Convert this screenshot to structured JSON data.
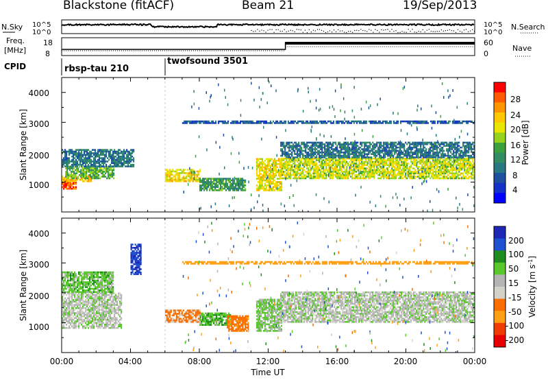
{
  "header": {
    "title": "Blackstone (fitACF)",
    "beam": "Beam 21",
    "date": "19/Sep/2013"
  },
  "top_panels": {
    "nsky_label": "N.Sky",
    "nsky_ticks": [
      "10^5",
      "10^0"
    ],
    "nsearch_label": "N.Search",
    "nsearch_ticks": [
      "10^5",
      "10^0"
    ],
    "freq_label": "Freq.",
    "freq_unit": "[MHz]",
    "freq_ticks": [
      "18",
      "8"
    ],
    "nave_label": "Nave",
    "nave_ticks": [
      "60",
      "0"
    ],
    "cpid_label": "CPID",
    "freq_step_time_ut": 13.0,
    "cpid_segments": [
      {
        "name": "rbsp-tau 210",
        "start_ut": 0.0
      },
      {
        "name": "twofsound 3501",
        "start_ut": 6.0
      }
    ]
  },
  "colorbars": {
    "power": {
      "label": "Power [dB]",
      "ticks": [
        "28",
        "24",
        "20",
        "16",
        "12",
        "8",
        "4"
      ],
      "colors": [
        "#ff0000",
        "#ff5a00",
        "#ff9600",
        "#ffc800",
        "#ebe600",
        "#96d21e",
        "#3ca03c",
        "#328c64",
        "#287882",
        "#1e50a0",
        "#1432c8",
        "#0000ff"
      ]
    },
    "velocity": {
      "label": "Velocity [m s",
      "label_sup": "-1",
      "label_end": "]",
      "ticks": [
        "200",
        "100",
        "50",
        "15",
        "-15",
        "-50",
        "-100",
        "-200"
      ],
      "colors": [
        "#1e28b4",
        "#1e50d2",
        "#1e8c1e",
        "#5ac82d",
        "#b4b4b4",
        "#d2d2c8",
        "#fa6e00",
        "#ffa014",
        "#f03c00",
        "#e60000"
      ]
    }
  },
  "chart_data": [
    {
      "type": "heatmap",
      "title": "Power",
      "xlabel": "Time UT",
      "ylabel": "Slant Range [km]",
      "xlim": [
        "00:00",
        "24:00"
      ],
      "ylim": [
        0,
        4500
      ],
      "x_ticks": [
        "00:00",
        "04:00",
        "08:00",
        "12:00",
        "16:00",
        "20:00",
        "00:00"
      ],
      "y_ticks": [
        "1000",
        "2000",
        "3000",
        "4000"
      ],
      "bands": [
        {
          "t0": 0.0,
          "t1": 0.8,
          "r0": 750,
          "r1": 1050,
          "value_db": 28
        },
        {
          "t0": 0.0,
          "t1": 1.7,
          "r0": 1000,
          "r1": 1200,
          "value_db": 22
        },
        {
          "t0": 0.2,
          "t1": 3.0,
          "r0": 1100,
          "r1": 1500,
          "value_db": 14
        },
        {
          "t0": 0.0,
          "t1": 4.2,
          "r0": 1500,
          "r1": 2100,
          "value_db": 8
        },
        {
          "t0": 6.0,
          "t1": 8.0,
          "r0": 1000,
          "r1": 1400,
          "value_db": 20
        },
        {
          "t0": 8.0,
          "t1": 10.7,
          "r0": 700,
          "r1": 1100,
          "value_db": 12
        },
        {
          "t0": 11.3,
          "t1": 12.8,
          "r0": 700,
          "r1": 1800,
          "value_db": 20
        },
        {
          "t0": 12.7,
          "t1": 24.0,
          "r0": 1100,
          "r1": 1800,
          "value_db": 18
        },
        {
          "t0": 12.7,
          "t1": 24.0,
          "r0": 1800,
          "r1": 2300,
          "value_db": 8
        },
        {
          "t0": 7.0,
          "t1": 24.0,
          "r0": 2950,
          "r1": 3050,
          "value_db": 6
        }
      ]
    },
    {
      "type": "heatmap",
      "title": "Velocity",
      "xlabel": "Time UT",
      "ylabel": "Slant Range [km]",
      "xlim": [
        "00:00",
        "24:00"
      ],
      "ylim": [
        0,
        4500
      ],
      "x_ticks": [
        "00:00",
        "04:00",
        "08:00",
        "12:00",
        "16:00",
        "20:00",
        "00:00"
      ],
      "y_ticks": [
        "1000",
        "2000",
        "3000",
        "4000"
      ],
      "bands": [
        {
          "t0": 0.0,
          "t1": 3.5,
          "r0": 800,
          "r1": 2000,
          "value_ms": 0
        },
        {
          "t0": 0.0,
          "t1": 3.0,
          "r0": 2000,
          "r1": 2700,
          "value_ms": 30
        },
        {
          "t0": 4.0,
          "t1": 4.6,
          "r0": 2600,
          "r1": 3600,
          "value_ms": 200
        },
        {
          "t0": 6.0,
          "t1": 8.0,
          "r0": 1000,
          "r1": 1400,
          "value_ms": -60
        },
        {
          "t0": 8.0,
          "t1": 9.8,
          "r0": 900,
          "r1": 1300,
          "value_ms": 40
        },
        {
          "t0": 9.6,
          "t1": 10.8,
          "r0": 700,
          "r1": 1200,
          "value_ms": -80
        },
        {
          "t0": 11.3,
          "t1": 12.8,
          "r0": 700,
          "r1": 1800,
          "value_ms": 20
        },
        {
          "t0": 12.7,
          "t1": 24.0,
          "r0": 1000,
          "r1": 2000,
          "value_ms": 0
        },
        {
          "t0": 7.0,
          "t1": 24.0,
          "r0": 2950,
          "r1": 3050,
          "value_ms": -150
        }
      ]
    }
  ]
}
